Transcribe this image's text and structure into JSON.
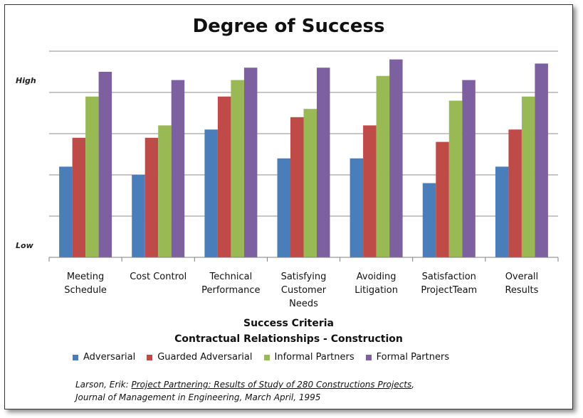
{
  "chart_data": {
    "type": "bar",
    "title": "Degree of Success",
    "xlabel": "Success Criteria",
    "subtitle": "Contractual Relationships - Construction",
    "ylabel_high": "High",
    "ylabel_low": "Low",
    "ylim": [
      0,
      5
    ],
    "grid": true,
    "legend_position": "bottom",
    "categories": [
      [
        "Meeting",
        "Schedule"
      ],
      [
        "Cost Control"
      ],
      [
        "Technical",
        "Performance"
      ],
      [
        "Satisfying",
        "Customer",
        "Needs"
      ],
      [
        "Avoiding",
        "Litigation"
      ],
      [
        "Satisfaction",
        "ProjectTeam"
      ],
      [
        "Overall",
        "Results"
      ]
    ],
    "series": [
      {
        "name": "Adversarial",
        "color": "#4A7EBB",
        "values": [
          2.2,
          2.0,
          3.1,
          2.4,
          2.4,
          1.8,
          2.2
        ]
      },
      {
        "name": "Guarded Adversarial",
        "color": "#BE4B48",
        "values": [
          2.9,
          2.9,
          3.9,
          3.4,
          3.2,
          2.8,
          3.1
        ]
      },
      {
        "name": "Informal Partners",
        "color": "#98B954",
        "values": [
          3.9,
          3.2,
          4.3,
          3.6,
          4.4,
          3.8,
          3.9
        ]
      },
      {
        "name": "Formal Partners",
        "color": "#7D60A0",
        "values": [
          4.5,
          4.3,
          4.6,
          4.6,
          4.8,
          4.3,
          4.7
        ]
      }
    ]
  },
  "citation": {
    "line1_prefix": "Larson, Erik: ",
    "line1_title": "Project Partnering:  Results of Study of 280 Constructions  Projects",
    "line1_suffix": ",",
    "line2": "Journal of Management in Engineering,  March April, 1995"
  }
}
